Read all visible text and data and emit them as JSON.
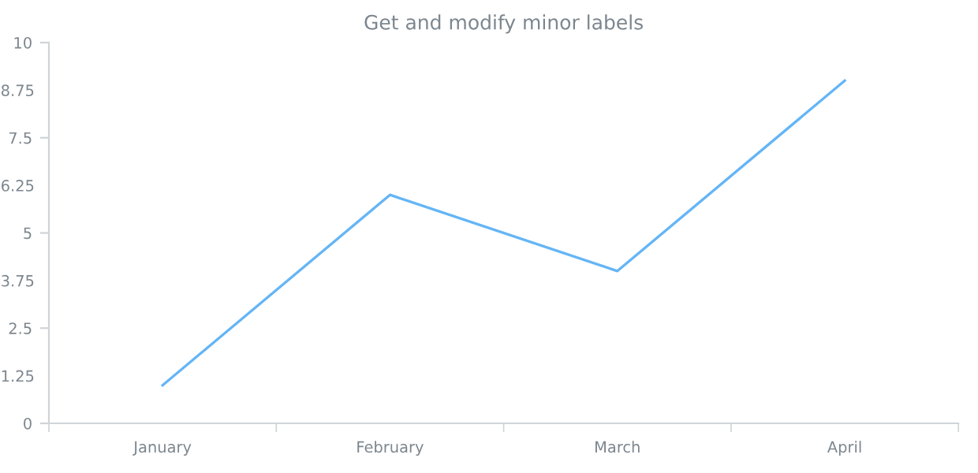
{
  "chart_data": {
    "type": "line",
    "title": "Get and modify minor labels",
    "categories": [
      "January",
      "February",
      "March",
      "April"
    ],
    "series": [
      {
        "color": "#64b5f6",
        "values": [
          1,
          6,
          4,
          9
        ]
      }
    ],
    "ylim": [
      0,
      10
    ],
    "yticks": [
      0,
      1.25,
      2.5,
      3.75,
      5,
      6.25,
      7.5,
      8.75,
      10
    ],
    "grid": false,
    "legend": false,
    "marker": "none",
    "line_style": "solid"
  }
}
